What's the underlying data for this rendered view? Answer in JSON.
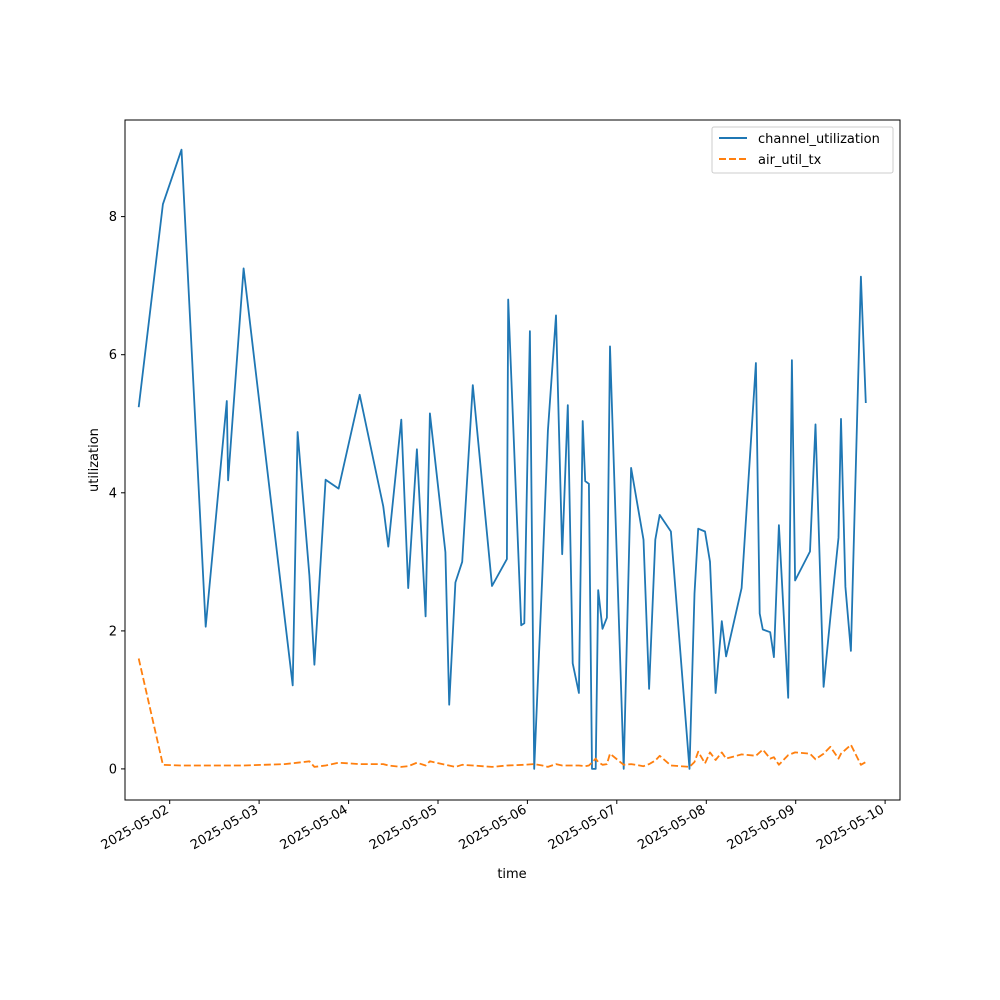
{
  "chart_data": {
    "type": "line",
    "title": "",
    "xlabel": "time",
    "ylabel": "utilization",
    "xlim": [
      "2025-05-01T12:00",
      "2025-05-10T04:00"
    ],
    "ylim": [
      -0.45,
      9.4
    ],
    "grid": false,
    "legend_loc": "upper right",
    "x_ticks": [
      "2025-05-02",
      "2025-05-03",
      "2025-05-04",
      "2025-05-05",
      "2025-05-06",
      "2025-05-07",
      "2025-05-08",
      "2025-05-09",
      "2025-05-10"
    ],
    "y_ticks": [
      0,
      2,
      4,
      6,
      8
    ],
    "series": [
      {
        "name": "channel_utilization",
        "color": "#1f77b4",
        "dash": "solid",
        "points": [
          [
            "2025-05-01T15:40",
            5.24
          ],
          [
            "2025-05-01T22:10",
            8.18
          ],
          [
            "2025-05-02T03:10",
            8.97
          ],
          [
            "2025-05-02T09:40",
            2.06
          ],
          [
            "2025-05-02T15:20",
            5.33
          ],
          [
            "2025-05-02T15:40",
            4.18
          ],
          [
            "2025-05-02T19:50",
            7.25
          ],
          [
            "2025-05-03T06:50",
            2.2
          ],
          [
            "2025-05-03T09:00",
            1.21
          ],
          [
            "2025-05-03T10:20",
            4.88
          ],
          [
            "2025-05-03T13:30",
            2.8
          ],
          [
            "2025-05-03T14:50",
            1.51
          ],
          [
            "2025-05-03T17:50",
            4.19
          ],
          [
            "2025-05-03T21:20",
            4.06
          ],
          [
            "2025-05-04T03:00",
            5.42
          ],
          [
            "2025-05-04T09:20",
            3.8
          ],
          [
            "2025-05-04T10:40",
            3.22
          ],
          [
            "2025-05-04T14:10",
            5.06
          ],
          [
            "2025-05-04T16:00",
            2.62
          ],
          [
            "2025-05-04T18:20",
            4.63
          ],
          [
            "2025-05-04T20:40",
            2.21
          ],
          [
            "2025-05-04T21:50",
            5.15
          ],
          [
            "2025-05-05T02:00",
            3.14
          ],
          [
            "2025-05-05T03:00",
            0.93
          ],
          [
            "2025-05-05T04:40",
            2.7
          ],
          [
            "2025-05-05T06:30",
            3.0
          ],
          [
            "2025-05-05T09:20",
            5.56
          ],
          [
            "2025-05-05T14:30",
            2.65
          ],
          [
            "2025-05-05T18:30",
            3.04
          ],
          [
            "2025-05-05T18:50",
            6.8
          ],
          [
            "2025-05-05T22:20",
            2.08
          ],
          [
            "2025-05-05T23:10",
            2.11
          ],
          [
            "2025-05-06T00:40",
            6.34
          ],
          [
            "2025-05-06T01:50",
            0.0
          ],
          [
            "2025-05-06T04:00",
            2.8
          ],
          [
            "2025-05-06T05:30",
            4.9
          ],
          [
            "2025-05-06T07:40",
            6.57
          ],
          [
            "2025-05-06T09:20",
            3.11
          ],
          [
            "2025-05-06T10:50",
            5.27
          ],
          [
            "2025-05-06T12:10",
            1.53
          ],
          [
            "2025-05-06T13:50",
            1.1
          ],
          [
            "2025-05-06T14:50",
            5.04
          ],
          [
            "2025-05-06T15:30",
            4.17
          ],
          [
            "2025-05-06T16:30",
            4.13
          ],
          [
            "2025-05-06T17:20",
            0.0
          ],
          [
            "2025-05-06T18:20",
            0.0
          ],
          [
            "2025-05-06T19:00",
            2.59
          ],
          [
            "2025-05-06T20:10",
            2.03
          ],
          [
            "2025-05-06T21:20",
            2.19
          ],
          [
            "2025-05-06T22:10",
            6.12
          ],
          [
            "2025-05-07T01:50",
            0.0
          ],
          [
            "2025-05-07T03:50",
            4.36
          ],
          [
            "2025-05-07T07:10",
            3.32
          ],
          [
            "2025-05-07T08:40",
            1.16
          ],
          [
            "2025-05-07T10:20",
            3.32
          ],
          [
            "2025-05-07T11:30",
            3.68
          ],
          [
            "2025-05-07T14:30",
            3.44
          ],
          [
            "2025-05-07T19:30",
            0.0
          ],
          [
            "2025-05-07T20:50",
            2.54
          ],
          [
            "2025-05-07T21:50",
            3.48
          ],
          [
            "2025-05-07T23:40",
            3.44
          ],
          [
            "2025-05-08T01:00",
            3.0
          ],
          [
            "2025-05-08T02:30",
            1.1
          ],
          [
            "2025-05-08T04:10",
            2.14
          ],
          [
            "2025-05-08T05:20",
            1.63
          ],
          [
            "2025-05-08T09:30",
            2.62
          ],
          [
            "2025-05-08T13:20",
            5.88
          ],
          [
            "2025-05-08T14:20",
            2.25
          ],
          [
            "2025-05-08T15:10",
            2.02
          ],
          [
            "2025-05-08T17:10",
            1.98
          ],
          [
            "2025-05-08T18:10",
            1.62
          ],
          [
            "2025-05-08T19:30",
            3.53
          ],
          [
            "2025-05-08T22:00",
            1.03
          ],
          [
            "2025-05-08T23:00",
            5.92
          ],
          [
            "2025-05-08T23:50",
            2.73
          ],
          [
            "2025-05-09T03:50",
            3.15
          ],
          [
            "2025-05-09T05:20",
            4.99
          ],
          [
            "2025-05-09T07:30",
            1.19
          ],
          [
            "2025-05-09T09:20",
            2.2
          ],
          [
            "2025-05-09T11:30",
            3.35
          ],
          [
            "2025-05-09T12:10",
            5.07
          ],
          [
            "2025-05-09T13:20",
            2.64
          ],
          [
            "2025-05-09T14:50",
            1.71
          ],
          [
            "2025-05-09T17:30",
            7.13
          ],
          [
            "2025-05-09T18:50",
            5.3
          ]
        ]
      },
      {
        "name": "air_util_tx",
        "color": "#ff7f0e",
        "dash": "dashed",
        "points": [
          [
            "2025-05-01T15:40",
            1.6
          ],
          [
            "2025-05-01T22:10",
            0.06
          ],
          [
            "2025-05-02T03:10",
            0.05
          ],
          [
            "2025-05-02T09:40",
            0.05
          ],
          [
            "2025-05-02T15:20",
            0.05
          ],
          [
            "2025-05-02T19:50",
            0.05
          ],
          [
            "2025-05-03T06:50",
            0.07
          ],
          [
            "2025-05-03T10:20",
            0.09
          ],
          [
            "2025-05-03T13:30",
            0.11
          ],
          [
            "2025-05-03T14:50",
            0.03
          ],
          [
            "2025-05-03T17:50",
            0.05
          ],
          [
            "2025-05-03T21:20",
            0.09
          ],
          [
            "2025-05-04T03:00",
            0.07
          ],
          [
            "2025-05-04T09:20",
            0.07
          ],
          [
            "2025-05-04T10:40",
            0.05
          ],
          [
            "2025-05-04T14:10",
            0.03
          ],
          [
            "2025-05-04T16:00",
            0.04
          ],
          [
            "2025-05-04T18:20",
            0.09
          ],
          [
            "2025-05-04T20:40",
            0.05
          ],
          [
            "2025-05-04T21:50",
            0.11
          ],
          [
            "2025-05-05T02:00",
            0.06
          ],
          [
            "2025-05-05T04:40",
            0.03
          ],
          [
            "2025-05-05T06:30",
            0.06
          ],
          [
            "2025-05-05T09:20",
            0.05
          ],
          [
            "2025-05-05T14:30",
            0.03
          ],
          [
            "2025-05-05T18:30",
            0.05
          ],
          [
            "2025-05-05T23:10",
            0.06
          ],
          [
            "2025-05-06T01:50",
            0.07
          ],
          [
            "2025-05-06T04:00",
            0.05
          ],
          [
            "2025-05-06T05:30",
            0.03
          ],
          [
            "2025-05-06T07:40",
            0.07
          ],
          [
            "2025-05-06T09:20",
            0.05
          ],
          [
            "2025-05-06T13:50",
            0.05
          ],
          [
            "2025-05-06T15:30",
            0.04
          ],
          [
            "2025-05-06T16:30",
            0.05
          ],
          [
            "2025-05-06T17:20",
            0.09
          ],
          [
            "2025-05-06T18:20",
            0.15
          ],
          [
            "2025-05-06T19:00",
            0.1
          ],
          [
            "2025-05-06T20:10",
            0.06
          ],
          [
            "2025-05-06T21:20",
            0.07
          ],
          [
            "2025-05-06T22:10",
            0.22
          ],
          [
            "2025-05-07T01:50",
            0.06
          ],
          [
            "2025-05-07T03:50",
            0.07
          ],
          [
            "2025-05-07T07:10",
            0.04
          ],
          [
            "2025-05-07T08:40",
            0.07
          ],
          [
            "2025-05-07T10:20",
            0.12
          ],
          [
            "2025-05-07T11:30",
            0.19
          ],
          [
            "2025-05-07T14:30",
            0.05
          ],
          [
            "2025-05-07T19:30",
            0.03
          ],
          [
            "2025-05-07T20:50",
            0.1
          ],
          [
            "2025-05-07T21:50",
            0.25
          ],
          [
            "2025-05-07T23:40",
            0.08
          ],
          [
            "2025-05-08T01:00",
            0.24
          ],
          [
            "2025-05-08T02:30",
            0.13
          ],
          [
            "2025-05-08T04:10",
            0.24
          ],
          [
            "2025-05-08T05:20",
            0.15
          ],
          [
            "2025-05-08T09:30",
            0.21
          ],
          [
            "2025-05-08T13:20",
            0.19
          ],
          [
            "2025-05-08T15:10",
            0.28
          ],
          [
            "2025-05-08T17:10",
            0.15
          ],
          [
            "2025-05-08T18:10",
            0.17
          ],
          [
            "2025-05-08T19:30",
            0.06
          ],
          [
            "2025-05-08T22:00",
            0.2
          ],
          [
            "2025-05-08T23:50",
            0.24
          ],
          [
            "2025-05-09T03:50",
            0.22
          ],
          [
            "2025-05-09T05:20",
            0.14
          ],
          [
            "2025-05-09T07:30",
            0.22
          ],
          [
            "2025-05-09T09:20",
            0.32
          ],
          [
            "2025-05-09T11:30",
            0.15
          ],
          [
            "2025-05-09T12:10",
            0.22
          ],
          [
            "2025-05-09T14:50",
            0.35
          ],
          [
            "2025-05-09T17:30",
            0.06
          ],
          [
            "2025-05-09T18:50",
            0.1
          ]
        ]
      }
    ]
  }
}
